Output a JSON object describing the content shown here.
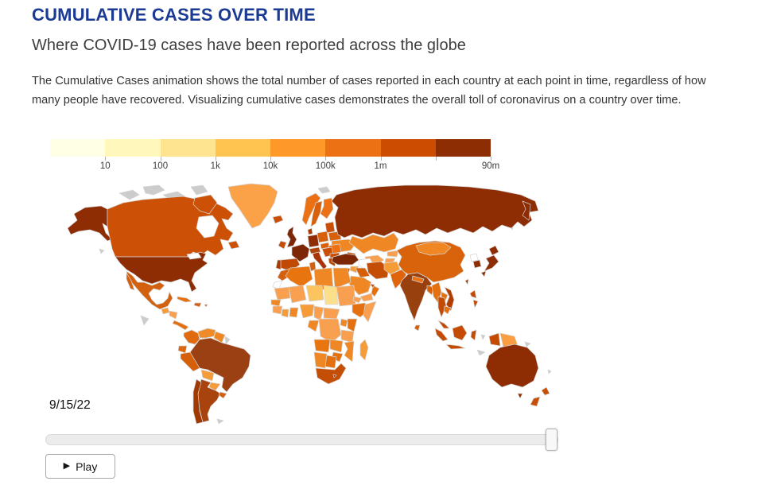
{
  "header": {
    "title": "CUMULATIVE CASES OVER TIME",
    "subtitle": "Where COVID-19 cases have been reported across the globe",
    "description": "The Cumulative Cases animation shows the total number of cases reported in each country at each point in time, regardless of how many people have recovered. Visualizing cumulative cases demonstrates the overall toll of coronavirus on a country over time."
  },
  "controls": {
    "date": "9/15/22",
    "play_icon": "▶",
    "play_label": "Play",
    "slider": {
      "min": 0,
      "max": 100,
      "value": 100
    }
  },
  "chart_data": {
    "type": "choropleth",
    "date_shown": "9/15/22",
    "legend": {
      "scale_type": "log",
      "unit": "cumulative cases",
      "tick_labels": [
        "10",
        "100",
        "1k",
        "10k",
        "100k",
        "1m",
        "90m"
      ],
      "tick_positions_pct": [
        12.5,
        25,
        37.5,
        50,
        62.5,
        75,
        100
      ],
      "minor_tick_positions_pct": [
        12.5,
        25,
        37.5,
        50,
        62.5,
        75,
        87.5,
        100
      ],
      "colors": [
        "#ffffe5",
        "#fff7bc",
        "#fee391",
        "#fec44f",
        "#fe9929",
        "#ec7014",
        "#cc4c02",
        "#8c2d04"
      ]
    },
    "no_data_color": "#cccccc",
    "countries": {
      "usa": "#8e2c04",
      "canada": "#cc5107",
      "greenland": "#fba147",
      "mexico": "#d2600e",
      "guatemala": "#f59b38",
      "honduras": "#f9a050",
      "costa-rica-panama": "#e4700f",
      "cuba": "#e4700f",
      "hispaniola": "#d2600e",
      "puerto-rico": "#c24a04",
      "colombia": "#e06a10",
      "venezuela": "#f08b2a",
      "guyana": "#ef8824",
      "ecuador": "#dd660c",
      "peru": "#d55f0a",
      "brazil": "#9a4012",
      "bolivia": "#f59b38",
      "paraguay": "#f59b38",
      "uruguay": "#d2600e",
      "argentina": "#a8430e",
      "chile": "#a03a02",
      "iceland": "#cb4e07",
      "uk": "#7c2605",
      "ireland": "#c44c04",
      "norway": "#ec7014",
      "sweden": "#d8600a",
      "finland": "#ec7014",
      "denmark": "#a83a04",
      "baltics": "#cb4e07",
      "belarus": "#d8600a",
      "ukraine": "#ef8824",
      "poland": "#d8600a",
      "germany": "#8e2c04",
      "france": "#7c2605",
      "spain": "#c04a04",
      "portugal": "#a63b03",
      "austria-switzerland": "#b0430a",
      "italy": "#a93307",
      "hungary": "#d8600a",
      "balkans": "#cb4e07",
      "romania": "#ec7014",
      "bulgaria": "#cb4e07",
      "greece": "#b64704",
      "russia": "#8e2c04",
      "kazakhstan": "#ef8824",
      "caucasus": "#cb4e07",
      "turkmenistan": "#ffffff",
      "uzbekistan": "#f9a050",
      "kyrgyzstan": "#f9a050",
      "tajikistan": "#f9a050",
      "turkey": "#7c2605",
      "syria": "#f59b38",
      "israel": "#c24a04",
      "iraq": "#d55f0a",
      "iran": "#c44e06",
      "saudi-arabia": "#ef8824",
      "yemen": "#f9a050",
      "oman": "#e4700f",
      "uae": "#cb4e07",
      "afghanistan": "#f59b38",
      "pakistan": "#e0650a",
      "india": "#99400f",
      "nepal": "#ec7014",
      "bangladesh": "#d8620a",
      "sri-lanka": "#d55f0a",
      "china": "#d9630a",
      "mongolia": "#ef8824",
      "taiwan": "#a33b02",
      "north-korea": "#ffffff",
      "south-korea": "#8e2c04",
      "japan": "#8e2c04",
      "myanmar": "#e4700f",
      "laos": "#e4700f",
      "vietnam": "#b23e02",
      "thailand": "#c24a04",
      "cambodia": "#e4700f",
      "malaysia": "#c24a04",
      "philippines": "#c24a04",
      "indonesia": "#c54b03",
      "papua-new-guinea": "#fb9d42",
      "australia": "#8e2c04",
      "new-zealand": "#c74f06",
      "morocco": "#d2600e",
      "western-sahara": "#ffffff",
      "algeria": "#e87410",
      "tunisia": "#d2600e",
      "libya": "#ef8824",
      "egypt": "#ef8824",
      "mauritania": "#f9a050",
      "mali": "#f9a050",
      "niger": "#fbc45e",
      "chad": "#fcdf8a",
      "sudan": "#f9a050",
      "eritrea": "#f9a050",
      "senegal": "#ef8824",
      "guinea": "#f9a050",
      "ivory-coast": "#f59b38",
      "ghana": "#ef8824",
      "nigeria": "#f59b38",
      "cameroon": "#f9a050",
      "central-african-republic": "#f9a050",
      "ethiopia": "#e4700f",
      "somalia": "#f9a050",
      "congo": "#ef8824",
      "drc": "#f9a050",
      "uganda": "#ef8824",
      "kenya": "#e4700f",
      "tanzania": "#f9a050",
      "angola": "#e8750e",
      "zambia": "#ef8824",
      "mozambique": "#ef8824",
      "zimbabwe": "#e4700f",
      "namibia": "#ef8824",
      "botswana": "#e4700f",
      "south-africa": "#c54e06",
      "lesotho": "#8e2c04",
      "madagascar": "#f59b38"
    }
  }
}
